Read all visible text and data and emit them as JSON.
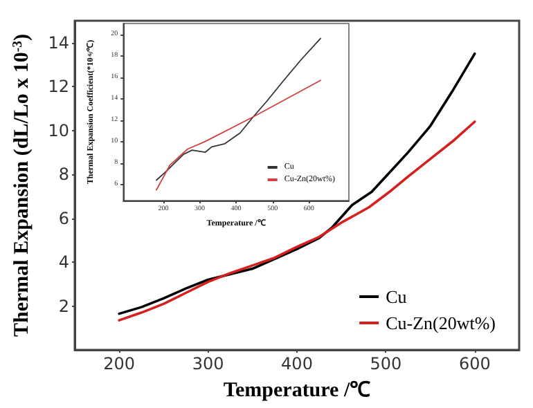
{
  "chart_data": [
    {
      "type": "line",
      "xlabel": "Temperature /℃",
      "ylabel": "Thermal Expansion (dL/Lo x 10$^{-3}$)",
      "xlim": [
        150,
        650
      ],
      "ylim": [
        0,
        15
      ],
      "xticks": [
        200,
        300,
        400,
        500,
        600
      ],
      "yticks": [
        2,
        4,
        6,
        8,
        10,
        12,
        14
      ],
      "legend": "bottom right",
      "marker": "none",
      "line_style": "solid",
      "grid": false,
      "series": [
        {
          "name": "Cu",
          "color": "#000000",
          "x": [
            200,
            225,
            250,
            275,
            300,
            325,
            350,
            375,
            400,
            425,
            440,
            462,
            484,
            500,
            525,
            550,
            575,
            600
          ],
          "values": [
            1.65,
            1.95,
            2.35,
            2.8,
            3.2,
            3.45,
            3.7,
            4.15,
            4.6,
            5.1,
            5.6,
            6.6,
            7.2,
            7.9,
            9.0,
            10.2,
            11.8,
            13.5
          ]
        },
        {
          "name": "Cu-Zn(20wt%)",
          "color": "#d62020",
          "x": [
            200,
            225,
            250,
            275,
            300,
            325,
            350,
            375,
            400,
            425,
            450,
            481,
            504,
            525,
            550,
            575,
            600
          ],
          "values": [
            1.35,
            1.7,
            2.1,
            2.6,
            3.1,
            3.5,
            3.85,
            4.2,
            4.7,
            5.15,
            5.8,
            6.5,
            7.2,
            7.9,
            8.7,
            9.5,
            10.4
          ]
        }
      ]
    },
    {
      "type": "line",
      "xlabel": "Temperature /℃",
      "ylabel": "Thermal Expansion Coefficient(*10$^{-6}$/℃)",
      "xlim": [
        90,
        710
      ],
      "ylim": [
        4.5,
        21
      ],
      "xticks": [
        200,
        300,
        400,
        500,
        600
      ],
      "yticks": [
        6,
        8,
        10,
        12,
        14,
        16,
        18,
        20
      ],
      "legend": "bottom right",
      "marker": "none",
      "line_style": "solid",
      "grid": false,
      "series": [
        {
          "name": "Cu",
          "color": "#333333",
          "x": [
            181,
            207,
            255,
            279,
            315,
            333,
            369,
            411,
            447,
            483,
            531,
            578,
            632
          ],
          "values": [
            6.4,
            7.2,
            8.8,
            9.2,
            9.0,
            9.5,
            9.8,
            10.8,
            12.3,
            13.7,
            15.7,
            17.6,
            19.6
          ]
        },
        {
          "name": "Cu-Zn(20wt%)",
          "color": "#d04040",
          "x": [
            181,
            218,
            267,
            315,
            447,
            632
          ],
          "values": [
            5.5,
            7.8,
            9.3,
            10.0,
            12.3,
            15.7
          ]
        }
      ]
    }
  ]
}
